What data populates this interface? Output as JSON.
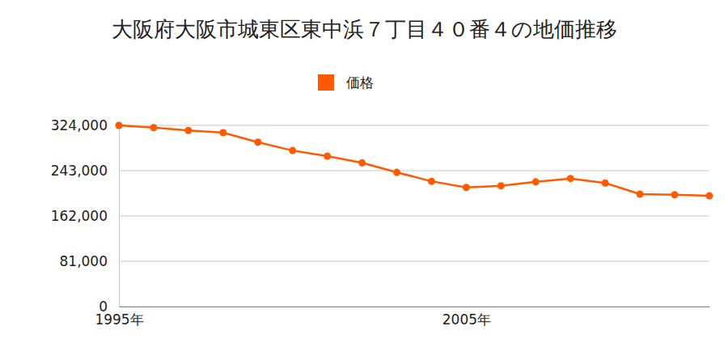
{
  "chart_data": {
    "type": "line",
    "title": "大阪府大阪市城東区東中浜７丁目４０番４の地価推移",
    "x": [
      1995,
      1996,
      1997,
      1998,
      1999,
      2000,
      2001,
      2002,
      2003,
      2004,
      2005,
      2006,
      2007,
      2008,
      2009,
      2010,
      2011,
      2012
    ],
    "series": [
      {
        "name": "価格",
        "color": "#ff5a00",
        "marker": "circle",
        "values": [
          324000,
          320000,
          315000,
          311000,
          294000,
          279000,
          269000,
          257000,
          240000,
          224000,
          213000,
          216000,
          223000,
          229000,
          221000,
          201000,
          200000,
          198000
        ]
      }
    ],
    "xlim": [
      1995,
      2012
    ],
    "xticks": [
      {
        "value": 1995,
        "label": "1995年"
      },
      {
        "value": 2005,
        "label": "2005年"
      }
    ],
    "ylim": [
      0,
      324000
    ],
    "yticks": [
      0,
      {
        "value": 81000,
        "label": "81,000"
      },
      {
        "value": 162000,
        "label": "162,000"
      },
      {
        "value": 243000,
        "label": "243,000"
      },
      {
        "value": 324000,
        "label": "324,000"
      }
    ],
    "grid": true,
    "legend": "top"
  }
}
